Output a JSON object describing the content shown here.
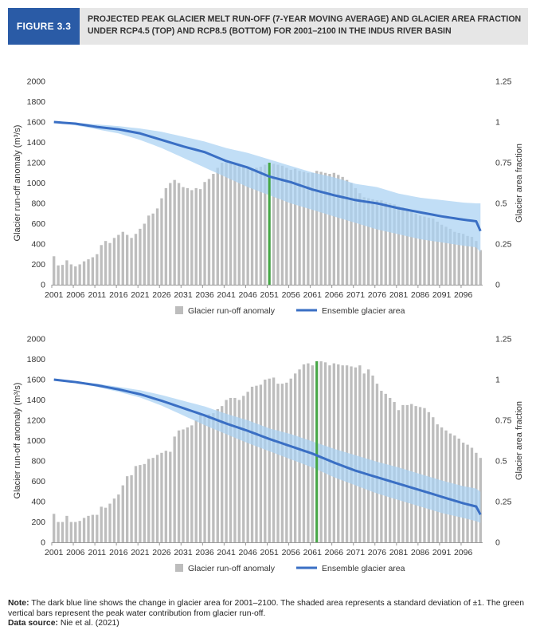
{
  "header": {
    "figure_label": "FIGURE 3.3",
    "title": "PROJECTED PEAK GLACIER MELT RUN-OFF (7-YEAR MOVING AVERAGE) AND GLACIER AREA FRACTION UNDER RCP4.5 (TOP) AND RCP8.5 (BOTTOM) FOR 2001–2100 IN THE INDUS RIVER BASIN"
  },
  "footer": {
    "note_label": "Note:",
    "note_text": " The dark blue line shows the change in glacier area for 2001–2100. The shaded area represents a standard deviation of ±1. The green vertical bars represent the peak water contribution from glacier run-off.",
    "source_label": "Data source:",
    "source_text": " Nie et al. (2021)"
  },
  "colors": {
    "bars": "#bdbdbd",
    "line": "#3a6fc4",
    "band": "#a9d1f2",
    "peak": "#45a845",
    "axis": "#999999"
  },
  "chart_data": [
    {
      "type": "bar",
      "scenario": "RCP4.5",
      "x_start": 2001,
      "x_end": 2100,
      "xtick_labels": [
        "2001",
        "2006",
        "2011",
        "2016",
        "2021",
        "2026",
        "2031",
        "2036",
        "2041",
        "2046",
        "2051",
        "2056",
        "2061",
        "2066",
        "2071",
        "2076",
        "2081",
        "2086",
        "2091",
        "2096"
      ],
      "ylabel": "Glacier run-off anomaly (m³/s)",
      "ylabel2": "Glacier area fraction",
      "ylim": [
        0,
        2000
      ],
      "yticks": [
        "0",
        "200",
        "400",
        "600",
        "800",
        "1000",
        "1200",
        "1400",
        "1600",
        "1800",
        "2000"
      ],
      "ylim2": [
        0,
        1.25
      ],
      "yticks2": [
        "0",
        "0.25",
        "0.5",
        "0.75",
        "1",
        "1.25"
      ],
      "legend": [
        "Glacier run-off anomaly",
        "Ensemble glacier area"
      ],
      "legend_position": "bottom",
      "peak_year": 2051,
      "series": [
        {
          "name": "Glacier run-off anomaly",
          "type": "bar",
          "values": [
            280,
            190,
            195,
            240,
            200,
            180,
            200,
            230,
            250,
            270,
            300,
            390,
            430,
            410,
            460,
            490,
            520,
            490,
            460,
            500,
            550,
            600,
            680,
            700,
            750,
            850,
            950,
            1000,
            1030,
            1000,
            960,
            950,
            930,
            950,
            940,
            1010,
            1040,
            1090,
            1150,
            1200,
            1200,
            1190,
            1180,
            1170,
            1160,
            1150,
            1140,
            1150,
            1160,
            1180,
            1200,
            1190,
            1180,
            1170,
            1150,
            1130,
            1140,
            1120,
            1110,
            1100,
            1100,
            1120,
            1110,
            1100,
            1090,
            1100,
            1080,
            1060,
            1030,
            1000,
            950,
            900,
            860,
            850,
            840,
            830,
            830,
            810,
            800,
            790,
            770,
            760,
            740,
            720,
            700,
            680,
            670,
            660,
            650,
            620,
            590,
            570,
            550,
            520,
            510,
            500,
            480,
            470,
            430,
            340
          ]
        },
        {
          "name": "Ensemble glacier area",
          "type": "line",
          "anchors_x": [
            2001,
            2006,
            2011,
            2016,
            2021,
            2026,
            2031,
            2036,
            2041,
            2046,
            2051,
            2056,
            2061,
            2066,
            2071,
            2076,
            2081,
            2086,
            2091,
            2096,
            2099,
            2100
          ],
          "anchors_y": [
            1.0,
            0.99,
            0.97,
            0.955,
            0.93,
            0.89,
            0.85,
            0.815,
            0.76,
            0.72,
            0.665,
            0.63,
            0.585,
            0.55,
            0.52,
            0.5,
            0.47,
            0.445,
            0.42,
            0.4,
            0.39,
            0.33
          ],
          "band_upper": [
            1.0,
            0.995,
            0.985,
            0.975,
            0.96,
            0.94,
            0.91,
            0.88,
            0.84,
            0.81,
            0.77,
            0.73,
            0.69,
            0.66,
            0.62,
            0.6,
            0.56,
            0.535,
            0.52,
            0.505,
            0.5,
            0.5
          ],
          "band_lower": [
            1.0,
            0.98,
            0.955,
            0.93,
            0.89,
            0.84,
            0.78,
            0.72,
            0.66,
            0.6,
            0.55,
            0.5,
            0.46,
            0.42,
            0.38,
            0.34,
            0.31,
            0.28,
            0.26,
            0.24,
            0.23,
            0.2
          ]
        }
      ]
    },
    {
      "type": "bar",
      "scenario": "RCP8.5",
      "x_start": 2001,
      "x_end": 2100,
      "xtick_labels": [
        "2001",
        "2006",
        "2011",
        "2016",
        "2021",
        "2026",
        "2031",
        "2036",
        "2041",
        "2046",
        "2051",
        "2056",
        "2061",
        "2066",
        "2071",
        "2076",
        "2081",
        "2086",
        "2091",
        "2096"
      ],
      "ylabel": "Glacier run-off anomaly (m³/s)",
      "ylabel2": "Glacier area fraction",
      "ylim": [
        0,
        2000
      ],
      "yticks": [
        "0",
        "200",
        "400",
        "600",
        "800",
        "1000",
        "1200",
        "1400",
        "1600",
        "1800",
        "2000"
      ],
      "ylim2": [
        0,
        1.25
      ],
      "yticks2": [
        "0",
        "0.25",
        "0.5",
        "0.75",
        "1",
        "1.25"
      ],
      "legend": [
        "Glacier run-off anomaly",
        "Ensemble glacier area"
      ],
      "legend_position": "bottom",
      "peak_year": 2062,
      "series": [
        {
          "name": "Glacier run-off anomaly",
          "type": "bar",
          "values": [
            280,
            200,
            200,
            260,
            200,
            200,
            210,
            240,
            260,
            270,
            270,
            350,
            340,
            380,
            430,
            470,
            560,
            650,
            660,
            750,
            760,
            770,
            820,
            830,
            860,
            880,
            900,
            890,
            1040,
            1100,
            1110,
            1130,
            1150,
            1200,
            1250,
            1240,
            1260,
            1270,
            1310,
            1340,
            1400,
            1420,
            1420,
            1400,
            1440,
            1480,
            1530,
            1540,
            1550,
            1600,
            1610,
            1620,
            1560,
            1560,
            1570,
            1610,
            1660,
            1700,
            1750,
            1760,
            1740,
            1780,
            1780,
            1770,
            1740,
            1760,
            1750,
            1740,
            1740,
            1730,
            1720,
            1740,
            1660,
            1700,
            1640,
            1560,
            1490,
            1460,
            1420,
            1380,
            1300,
            1350,
            1350,
            1360,
            1340,
            1330,
            1320,
            1280,
            1230,
            1160,
            1130,
            1100,
            1070,
            1050,
            1020,
            980,
            960,
            930,
            880,
            830
          ]
        },
        {
          "name": "Ensemble glacier area",
          "type": "line",
          "anchors_x": [
            2001,
            2006,
            2011,
            2016,
            2021,
            2026,
            2031,
            2036,
            2041,
            2046,
            2051,
            2056,
            2061,
            2066,
            2071,
            2076,
            2081,
            2086,
            2091,
            2096,
            2099,
            2100
          ],
          "anchors_y": [
            1.0,
            0.985,
            0.965,
            0.94,
            0.91,
            0.87,
            0.825,
            0.78,
            0.73,
            0.685,
            0.635,
            0.59,
            0.545,
            0.49,
            0.44,
            0.4,
            0.36,
            0.32,
            0.28,
            0.24,
            0.22,
            0.17
          ],
          "band_upper": [
            1.0,
            0.99,
            0.975,
            0.955,
            0.935,
            0.905,
            0.87,
            0.835,
            0.79,
            0.75,
            0.7,
            0.665,
            0.62,
            0.575,
            0.535,
            0.495,
            0.46,
            0.42,
            0.38,
            0.345,
            0.33,
            0.31
          ],
          "band_lower": [
            1.0,
            0.98,
            0.955,
            0.925,
            0.89,
            0.84,
            0.78,
            0.72,
            0.665,
            0.61,
            0.56,
            0.51,
            0.46,
            0.4,
            0.35,
            0.3,
            0.26,
            0.22,
            0.18,
            0.15,
            0.13,
            0.12
          ]
        }
      ]
    }
  ]
}
